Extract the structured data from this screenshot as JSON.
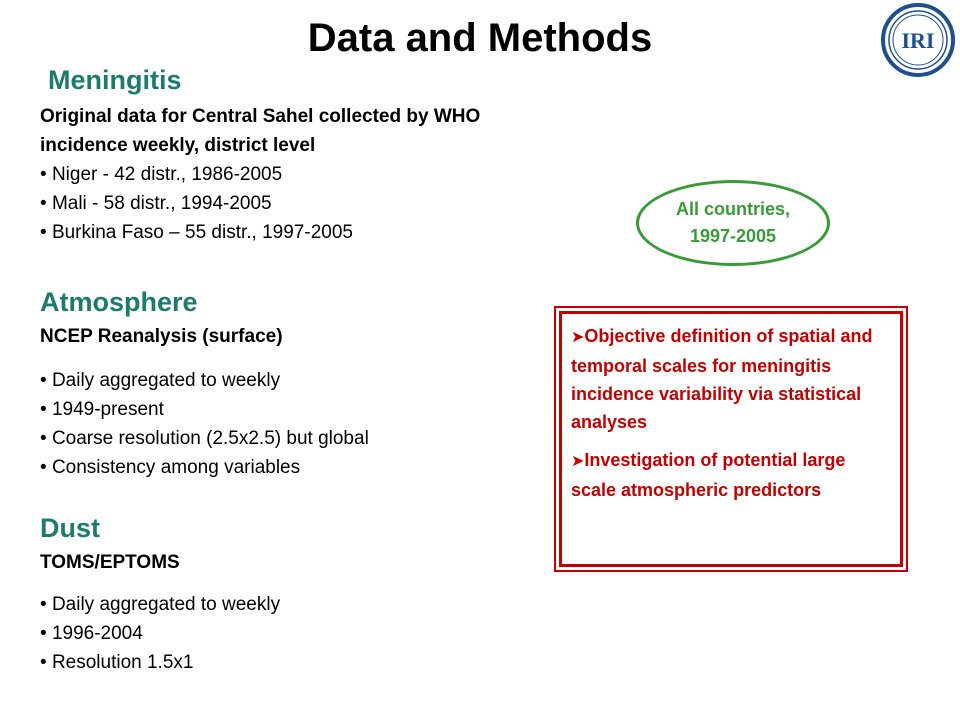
{
  "title": "Data and Methods",
  "logo": {
    "text": "IRI"
  },
  "meningitis": {
    "heading": "Meningitis",
    "subtitle_line1": "Original data for Central Sahel collected by WHO",
    "subtitle_line2": "incidence weekly, district level",
    "items": [
      "Niger - 42 distr., 1986-2005",
      "Mali - 58 distr., 1994-2005",
      "Burkina Faso – 55 distr., 1997-2005"
    ]
  },
  "oval": {
    "line1": "All countries,",
    "line2": "1997-2005"
  },
  "atmosphere": {
    "heading": "Atmosphere",
    "subtitle": "NCEP Reanalysis (surface)",
    "items": [
      "Daily aggregated to weekly",
      "1949-present",
      "Coarse resolution (2.5x2.5) but global",
      "Consistency among variables"
    ]
  },
  "dust": {
    "heading": "Dust",
    "subtitle": "TOMS/EPTOMS",
    "items": [
      "Daily aggregated to weekly",
      "1996-2004",
      "Resolution 1.5x1"
    ]
  },
  "objectives": {
    "items": [
      "Objective definition of spatial and temporal scales for meningitis incidence variability via statistical analyses",
      "Investigation of potential large scale atmospheric predictors"
    ]
  },
  "colors": {
    "heading": "#1f7a6e",
    "oval": "#3a9a3a",
    "box": "#c00000",
    "logo": "#1f4f8f"
  }
}
